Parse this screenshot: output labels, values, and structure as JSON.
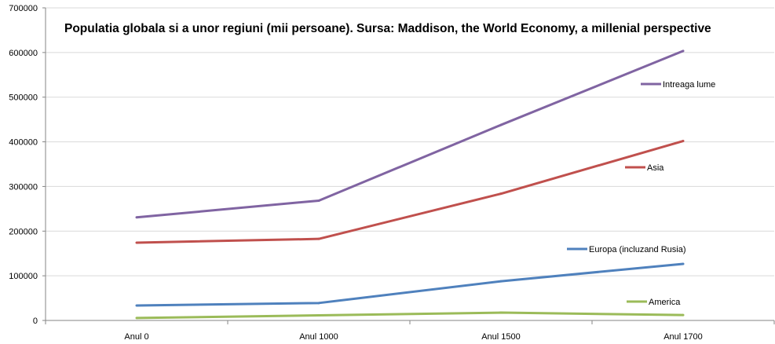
{
  "chart_data": {
    "type": "line",
    "title": "Populatia globala si a unor regiuni (mii persoane). Sursa: Maddison, the World Economy, a millenial perspective",
    "xlabel": "",
    "ylabel": "",
    "categories": [
      "Anul 0",
      "Anul 1000",
      "Anul 1500",
      "Anul 1700"
    ],
    "ylim": [
      0,
      700000
    ],
    "yticks": [
      "0",
      "100000",
      "200000",
      "300000",
      "400000",
      "500000",
      "600000",
      "700000"
    ],
    "grid": true,
    "legend": "inline-right",
    "series": [
      {
        "name": "Intreaga lume",
        "color": "#8064A2",
        "values": [
          230820,
          268273,
          437818,
          603410
        ]
      },
      {
        "name": "Asia",
        "color": "#C0504D",
        "values": [
          174200,
          182600,
          283800,
          401800
        ]
      },
      {
        "name": "Europa (incluzand Rusia)",
        "color": "#4F81BD",
        "values": [
          33350,
          39013,
          87700,
          126700
        ]
      },
      {
        "name": "America",
        "color": "#9BBB59",
        "values": [
          5400,
          11400,
          17500,
          12050
        ]
      }
    ]
  }
}
